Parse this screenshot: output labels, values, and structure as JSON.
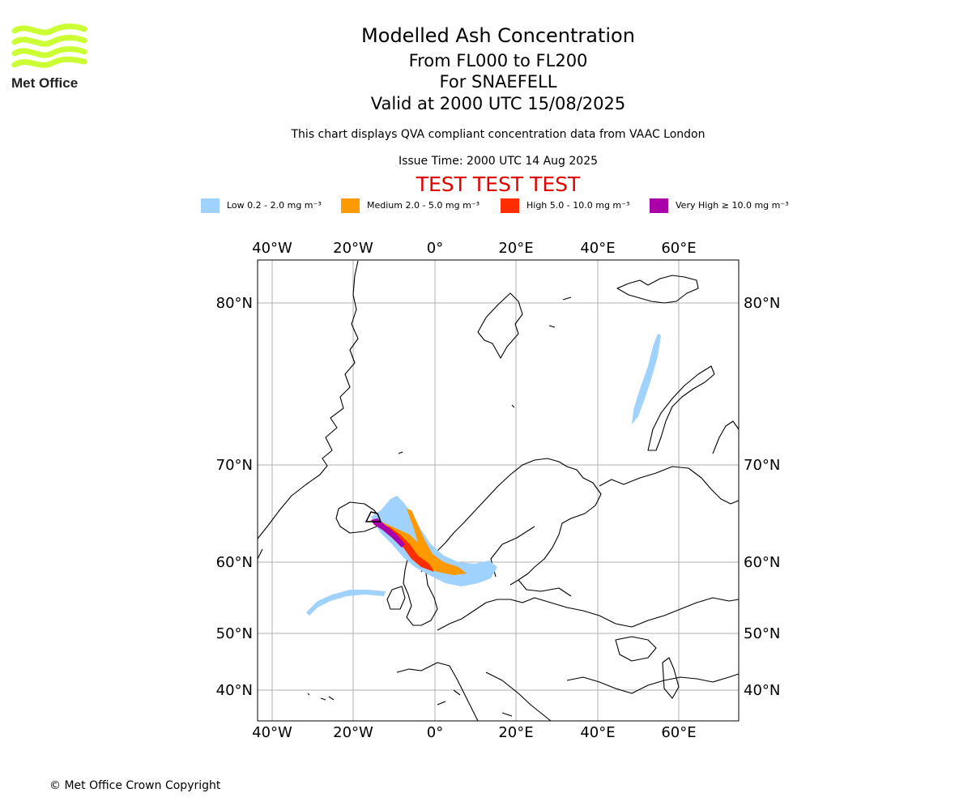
{
  "header": {
    "title": "Modelled Ash Concentration",
    "flight_levels": "From FL000 to FL200",
    "volcano": "For SNAEFELL",
    "valid_time": "Valid at 2000 UTC 15/08/2025",
    "description": "This chart displays QVA compliant concentration data from VAAC London",
    "issue_time": "Issue Time: 2000 UTC 14 Aug 2025",
    "test_banner": "TEST TEST TEST"
  },
  "logo": {
    "text": "Met Office",
    "wave_color": "#ccff33"
  },
  "legend": [
    {
      "label": "Low 0.2 - 2.0 mg m⁻³",
      "color": "#a0d2ff"
    },
    {
      "label": "Medium 2.0 - 5.0 mg m⁻³",
      "color": "#ff9900"
    },
    {
      "label": "High 5.0 - 10.0 mg m⁻³",
      "color": "#ff2d00"
    },
    {
      "label": "Very High ≥ 10.0 mg m⁻³",
      "color": "#aa00aa"
    }
  ],
  "map": {
    "lon_labels": [
      "40°W",
      "20°W",
      "0°",
      "20°E",
      "40°E",
      "60°E"
    ],
    "lat_labels": [
      "80°N",
      "70°N",
      "60°N",
      "50°N",
      "40°N"
    ],
    "gridlines": true
  },
  "footer": {
    "copyright": "© Met Office Crown Copyright"
  }
}
